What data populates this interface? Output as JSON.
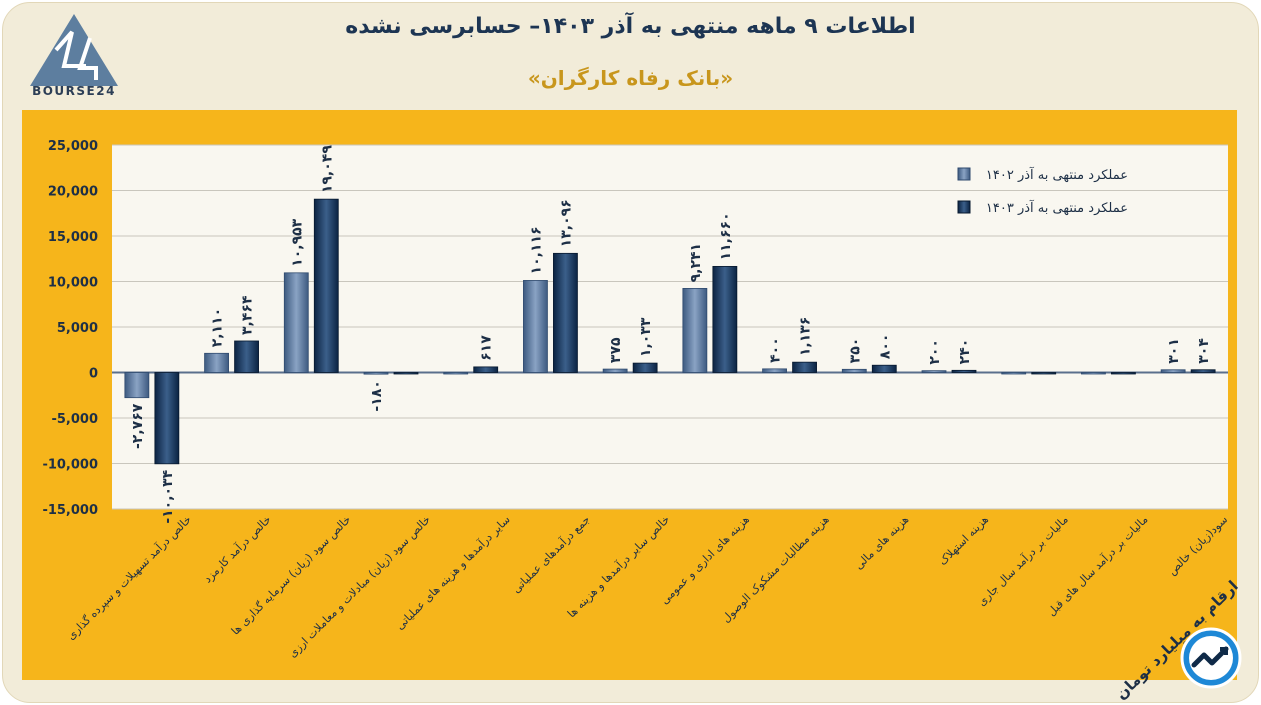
{
  "header": {
    "title": "اطلاعات ۹ ماهه منتهی به آذر ۱۴۰۳– حسابرسی نشده",
    "subtitle": "«بانک رفاه کارگران»",
    "logo_text": "BOURSE24",
    "unit_note": "ارقام به میلیارد تومان"
  },
  "colors": {
    "frame_bg": "#f2ecd9",
    "panel_bg": "#f6b51b",
    "plot_bg": "#f9f7f0",
    "series_1402": "#4f6e95",
    "series_1403": "#102c4f",
    "title": "#1d3553",
    "subtitle": "#c8961c"
  },
  "chart_data": {
    "type": "bar",
    "categories": [
      "خالص درآمد تسهیلات و سپرده گذاری",
      "خالص درآمد کارمزد",
      "خالص سود (زیان) سرمایه گذاری ها",
      "خالص سود (زیان) مبادلات و معاملات ارزی",
      "سایر درآمدها و هزینه های عملیاتی",
      "جمع درآمدهای عملیاتی",
      "خالص سایر درآمدها و هزینه ها",
      "هزینه های اداری و عمومی",
      "هزینه مطالبات مشکوک الوصول",
      "هزینه های مالی",
      "هزینه استهلاک",
      "مالیات بر درآمد سال جاری",
      "مالیات بر درآمد سال های قبل",
      "سود(زیان) خالص"
    ],
    "series": [
      {
        "name": "عملکرد منتهی به آذر ۱۴۰۲",
        "values": [
          -2767,
          2110,
          10953,
          -180,
          0,
          10116,
          375,
          9241,
          400,
          350,
          200,
          0,
          0,
          301
        ],
        "labels": [
          "-۲,۷۶۷",
          "۲,۱۱۰",
          "۱۰,۹۵۳",
          "-۱۸۰",
          "",
          "۱۰,۱۱۶",
          "۳۷۵",
          "۹,۲۴۱",
          "۴۰۰",
          "۳۵۰",
          "۲۰۰",
          "",
          "",
          "۳۰۱"
        ]
      },
      {
        "name": "عملکرد منتهی به آذر ۱۴۰۳",
        "values": [
          -10034,
          3464,
          19049,
          0,
          617,
          13096,
          1033,
          11660,
          1136,
          800,
          240,
          0,
          0,
          304
        ],
        "labels": [
          "-۱۰,۰۳۴",
          "۳,۴۶۴",
          "۱۹,۰۴۹",
          "",
          "۶۱۷",
          "۱۳,۰۹۶",
          "۱,۰۳۳",
          "۱۱,۶۶۰",
          "۱,۱۳۶",
          "۸۰۰",
          "۲۴۰",
          "",
          "",
          "۳۰۴"
        ]
      }
    ],
    "yticks": [
      -15000,
      -10000,
      -5000,
      0,
      5000,
      10000,
      15000,
      20000,
      25000
    ],
    "ytick_labels": [
      "-15,000",
      "-10,000",
      "-5,000",
      "0",
      "5,000",
      "10,000",
      "15,000",
      "20,000",
      "25,000"
    ],
    "ylim": [
      -15000,
      25000
    ],
    "grid": true,
    "legend_position": "top-right"
  }
}
